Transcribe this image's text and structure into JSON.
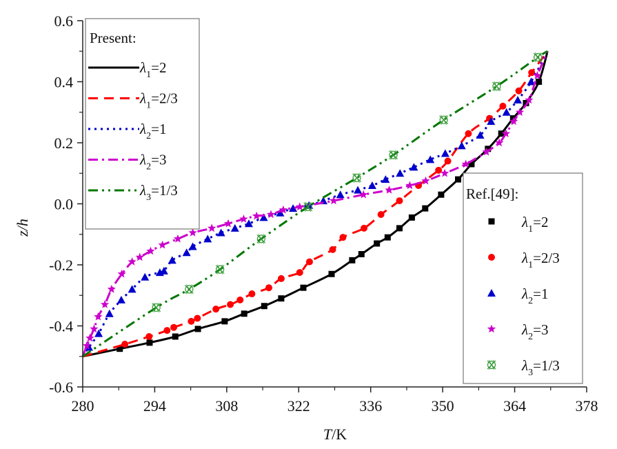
{
  "chart_data": {
    "type": "line",
    "title": "",
    "xlabel": "T/K",
    "xlabel_italic": "T",
    "xlabel_unit": "/K",
    "ylabel": "z/h",
    "xlim": [
      280,
      378
    ],
    "ylim": [
      -0.6,
      0.6
    ],
    "xticks": [
      "280",
      "294",
      "308",
      "322",
      "336",
      "350",
      "364",
      "378"
    ],
    "xtick_values": [
      280,
      294,
      308,
      322,
      336,
      350,
      364,
      378
    ],
    "yticks": [
      "-0.6",
      "-0.4",
      "-0.2",
      "0.0",
      "0.2",
      "0.4",
      "0.6"
    ],
    "ytick_values": [
      -0.6,
      -0.4,
      -0.2,
      0.0,
      0.2,
      0.4,
      0.6
    ],
    "grid": false,
    "legend_present": {
      "title": "Present:",
      "placement": "top-left",
      "entries": [
        {
          "sym": "λ",
          "sub": "1",
          "val": "=2",
          "color": "#000000",
          "dash": "solid"
        },
        {
          "sym": "λ",
          "sub": "1",
          "val": "=2/3",
          "color": "#ff0000",
          "dash": "dash"
        },
        {
          "sym": "λ",
          "sub": "2",
          "val": "=1",
          "color": "#0000cc",
          "dash": "dot"
        },
        {
          "sym": "λ",
          "sub": "2",
          "val": "=3",
          "color": "#cc00cc",
          "dash": "dashdot"
        },
        {
          "sym": "λ",
          "sub": "3",
          "val": "=1/3",
          "color": "#007700",
          "dash": "dashdotdot"
        }
      ]
    },
    "legend_ref": {
      "title": "Ref.[49]:",
      "placement": "bottom-right",
      "entries": [
        {
          "sym": "λ",
          "sub": "1",
          "val": "=2",
          "color": "#000000",
          "marker": "square"
        },
        {
          "sym": "λ",
          "sub": "1",
          "val": "=2/3",
          "color": "#ff0000",
          "marker": "circle"
        },
        {
          "sym": "λ",
          "sub": "2",
          "val": "=1",
          "color": "#0000cc",
          "marker": "triangle"
        },
        {
          "sym": "λ",
          "sub": "2",
          "val": "=3",
          "color": "#cc00cc",
          "marker": "star"
        },
        {
          "sym": "λ",
          "sub": "3",
          "val": "=1/3",
          "color": "#339933",
          "marker": "crossed-circle"
        }
      ]
    },
    "series": [
      {
        "name": "λ1=2",
        "color": "#000000",
        "dash": "solid",
        "marker": "square",
        "x": [
          280,
          287.2,
          293,
          298,
          302.4,
          307.6,
          311.4,
          315.3,
          318.6,
          322.9,
          328.4,
          332.4,
          334.2,
          337.2,
          339.3,
          341.6,
          344.0,
          346.6,
          349.7,
          353.0,
          355.6,
          358.8,
          361.4,
          363.7,
          366.2,
          368.7,
          370.4
        ],
        "y": [
          -0.5,
          -0.475,
          -0.455,
          -0.435,
          -0.41,
          -0.385,
          -0.36,
          -0.335,
          -0.31,
          -0.275,
          -0.23,
          -0.185,
          -0.165,
          -0.13,
          -0.11,
          -0.08,
          -0.045,
          -0.015,
          0.03,
          0.08,
          0.13,
          0.18,
          0.23,
          0.28,
          0.33,
          0.4,
          0.5
        ]
      },
      {
        "name": "λ1=2/3",
        "color": "#ff0000",
        "dash": "dash",
        "marker": "circle",
        "x": [
          280,
          288.2,
          292.9,
          296.4,
          297.7,
          301.1,
          302.3,
          305.9,
          308.7,
          310.6,
          312.9,
          316.2,
          318.6,
          322.2,
          324.1,
          328.6,
          330.6,
          334.7,
          338.0,
          341.6,
          345.3,
          349.2,
          351.0,
          355.0,
          359.1,
          361.7,
          364.8,
          367.3,
          370.4
        ],
        "y": [
          -0.5,
          -0.46,
          -0.435,
          -0.415,
          -0.405,
          -0.385,
          -0.375,
          -0.345,
          -0.33,
          -0.315,
          -0.295,
          -0.275,
          -0.245,
          -0.225,
          -0.19,
          -0.15,
          -0.11,
          -0.08,
          -0.035,
          0.01,
          0.06,
          0.11,
          0.14,
          0.23,
          0.28,
          0.32,
          0.37,
          0.43,
          0.5
        ]
      },
      {
        "name": "λ2=1",
        "color": "#0000cc",
        "dash": "dot",
        "marker": "triangle",
        "x": [
          280,
          281.2,
          283.1,
          285.2,
          287.5,
          289.6,
          292.1,
          295.0,
          295.8,
          297.4,
          300.2,
          301.4,
          304.3,
          306.9,
          309.6,
          312.3,
          315.2,
          318.4,
          320.9,
          324.0,
          326.8,
          330.1,
          333.5,
          336.3,
          338.9,
          341.7,
          344.4,
          347.6,
          350.5,
          353.7,
          357.3,
          359.4,
          362.4,
          364.6,
          367.2,
          370.4
        ],
        "y": [
          -0.5,
          -0.47,
          -0.425,
          -0.36,
          -0.315,
          -0.28,
          -0.24,
          -0.225,
          -0.22,
          -0.185,
          -0.16,
          -0.14,
          -0.115,
          -0.095,
          -0.08,
          -0.065,
          -0.045,
          -0.03,
          -0.015,
          -0.005,
          0.01,
          0.03,
          0.045,
          0.06,
          0.08,
          0.1,
          0.12,
          0.145,
          0.165,
          0.19,
          0.225,
          0.27,
          0.3,
          0.34,
          0.4,
          0.5
        ]
      },
      {
        "name": "λ2=3",
        "color": "#cc00cc",
        "dash": "dashdot",
        "marker": "star",
        "x": [
          280,
          280.8,
          281.4,
          282.2,
          283.0,
          284.3,
          285.6,
          287.6,
          289.6,
          291.1,
          293.2,
          295.5,
          298.5,
          301.4,
          305.1,
          308.3,
          311.3,
          313.8,
          316.6,
          319.0,
          322.2,
          328.8,
          334.6,
          339.6,
          343.6,
          346.7,
          350.4,
          354.5,
          358.5,
          361.0,
          362.3,
          363.8,
          365.0,
          366.8,
          368.4,
          370.4
        ],
        "y": [
          -0.5,
          -0.465,
          -0.44,
          -0.41,
          -0.37,
          -0.33,
          -0.28,
          -0.23,
          -0.19,
          -0.175,
          -0.155,
          -0.135,
          -0.115,
          -0.095,
          -0.08,
          -0.065,
          -0.05,
          -0.04,
          -0.035,
          -0.02,
          -0.01,
          0.01,
          0.03,
          0.045,
          0.06,
          0.075,
          0.1,
          0.13,
          0.17,
          0.2,
          0.23,
          0.27,
          0.3,
          0.34,
          0.42,
          0.5
        ]
      },
      {
        "name": "λ3=1/3",
        "color": "#007700",
        "dash": "dashdotdot",
        "marker": "crossed-circle",
        "x": [
          280,
          294.3,
          300.7,
          306.7,
          314.7,
          323.8,
          333.3,
          340.4,
          350.2,
          360.5,
          368.5,
          370.4
        ],
        "y": [
          -0.5,
          -0.34,
          -0.28,
          -0.215,
          -0.115,
          -0.01,
          0.085,
          0.16,
          0.275,
          0.385,
          0.48,
          0.5
        ]
      }
    ]
  }
}
